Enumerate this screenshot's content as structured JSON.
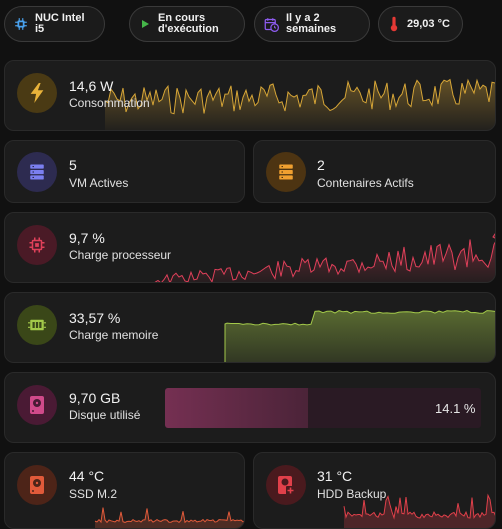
{
  "chips": [
    {
      "label": "NUC Intel i5",
      "icon": "cpu-chip-icon",
      "color": "#4aa3f0"
    },
    {
      "label": "En cours d'exécution",
      "line1": "En cours",
      "line2": "d'exécution",
      "icon": "play-icon",
      "color": "#45b649"
    },
    {
      "label": "Il y a 2 semaines",
      "line1": "Il y a 2",
      "line2": "semaines",
      "icon": "calendar-clock-icon",
      "color": "#8e5cf0"
    },
    {
      "label": "29,03 °C",
      "icon": "thermometer-icon",
      "color": "#e53935"
    }
  ],
  "cards": {
    "consumption": {
      "value": "14,6 W",
      "label": "Consommation",
      "icon": "lightning-bolt-icon",
      "color": "#e8b23a"
    },
    "vms": {
      "value": "5",
      "label": "VM Actives",
      "icon": "server-icon",
      "color": "#7b7ff0"
    },
    "containers": {
      "value": "2",
      "label": "Contenaires Actifs",
      "icon": "server-icon",
      "color": "#f0a030"
    },
    "cpu": {
      "value": "9,7 %",
      "label": "Charge processeur",
      "icon": "cpu-chip-icon",
      "color": "#e0405a"
    },
    "memory": {
      "value": "33,57 %",
      "label": "Charge memoire",
      "icon": "memory-chip-icon",
      "color": "#a3c94a"
    },
    "disk": {
      "value": "9,70 GB",
      "label": "Disque utilisé",
      "icon": "harddisk-icon",
      "color": "#d04a8a",
      "percent_label": "14.1 %",
      "percent": 14.1
    },
    "ssd": {
      "value": "44 °C",
      "label": "SSD M.2",
      "icon": "harddisk-icon",
      "color": "#e05a3a"
    },
    "hdd": {
      "value": "31 °C",
      "label": "HDD Backup",
      "icon": "harddisk-plus-icon",
      "color": "#e0404a"
    }
  }
}
